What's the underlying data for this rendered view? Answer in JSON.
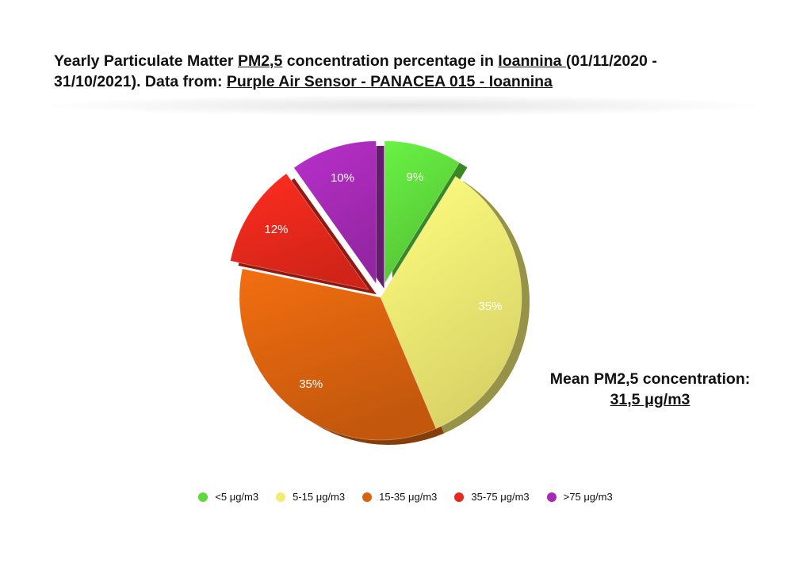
{
  "title": {
    "part1": "Yearly Particulate Matter ",
    "link_pm": "PM2,5",
    "part2": " concentration percentage in ",
    "link_city": "Ioannina ",
    "part3": "(01/11/2020 -",
    "part4": "31/10/2021). Data from: ",
    "link_source": "Purple Air Sensor - PANACEA 015 - Ioannina"
  },
  "mean": {
    "label": "Mean PM2,5 concentration:",
    "value": "31,5 μg/m3"
  },
  "chart_data": {
    "type": "pie",
    "style": "3d-exploded",
    "title": "",
    "categories": [
      "<5 μg/m3",
      "5-15 μg/m3",
      "15-35 μg/m3",
      "35-75 μg/m3",
      ">75 μg/m3"
    ],
    "values": [
      9,
      35,
      35,
      12,
      10
    ],
    "labels": [
      "9%",
      "35%",
      "35%",
      "12%",
      "10%"
    ],
    "colors": [
      "#5ED93C",
      "#F2EC72",
      "#D9620E",
      "#E8281C",
      "#A52AB5"
    ],
    "exploded": [
      true,
      false,
      false,
      true,
      true
    ],
    "legend_position": "bottom"
  }
}
